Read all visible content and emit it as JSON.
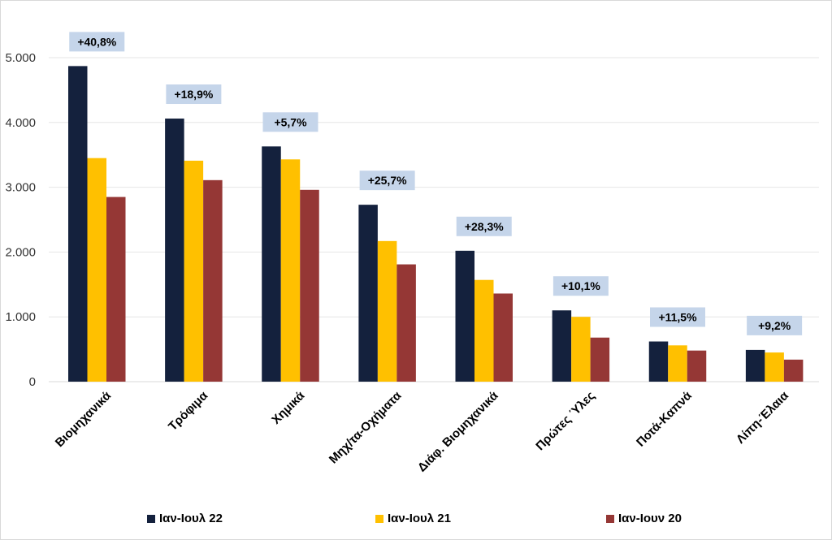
{
  "chart_data": {
    "type": "bar",
    "categories": [
      "Βιομηχανικά",
      "Τρόφιμα",
      "Χημικά",
      "Μηχ/τα-Οχήματα",
      "Διάφ. Βιομηχανικά",
      "Πρώτες Ύλες",
      "Ποτά-Καπνά",
      "Λίπη-Έλαια"
    ],
    "series": [
      {
        "name": "Ιαν-Ιουλ 22",
        "color": "#14213d",
        "values": [
          4870,
          4060,
          3630,
          2730,
          2020,
          1100,
          620,
          490
        ]
      },
      {
        "name": "Ιαν-Ιουλ 21",
        "color": "#ffc000",
        "values": [
          3450,
          3410,
          3430,
          2170,
          1570,
          1000,
          560,
          450
        ]
      },
      {
        "name": "Ιαν-Ιουν 20",
        "color": "#953735",
        "values": [
          2850,
          3110,
          2960,
          1810,
          1360,
          680,
          480,
          340
        ]
      }
    ],
    "annotations": [
      "+40,8%",
      "+18,9%",
      "+5,7%",
      "+25,7%",
      "+28,3%",
      "+10,1%",
      "+11,5%",
      "+9,2%"
    ],
    "annotation_color": "#c5d5ea",
    "y_ticks": [
      "0",
      "1.000",
      "2.000",
      "3.000",
      "4.000",
      "5.000"
    ],
    "y_tick_values": [
      0,
      1000,
      2000,
      3000,
      4000,
      5000
    ],
    "ylim": [
      0,
      5000
    ],
    "grid": true,
    "legend_position": "bottom",
    "title": "",
    "xlabel": "",
    "ylabel": ""
  }
}
